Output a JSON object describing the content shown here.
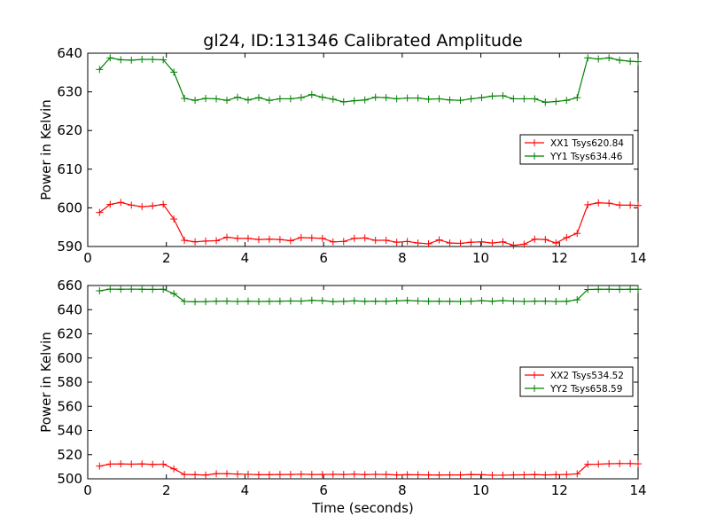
{
  "chart_data": [
    {
      "type": "line",
      "title": "gl24, ID:131346 Calibrated Amplitude",
      "xlabel": "",
      "ylabel": "Power in Kelvin",
      "xlim": [
        0,
        14
      ],
      "ylim": [
        590,
        640
      ],
      "xticks": [
        0,
        2,
        4,
        6,
        8,
        10,
        12,
        14
      ],
      "yticks": [
        590,
        600,
        610,
        620,
        630,
        640
      ],
      "grid": false,
      "legend_position": "right",
      "x": [
        0.3,
        0.57,
        0.84,
        1.11,
        1.38,
        1.65,
        1.92,
        2.19,
        2.46,
        2.73,
        3.0,
        3.27,
        3.54,
        3.81,
        4.08,
        4.35,
        4.62,
        4.89,
        5.16,
        5.43,
        5.7,
        5.97,
        6.24,
        6.51,
        6.78,
        7.05,
        7.32,
        7.59,
        7.86,
        8.13,
        8.4,
        8.67,
        8.94,
        9.21,
        9.48,
        9.75,
        10.02,
        10.29,
        10.56,
        10.83,
        11.1,
        11.37,
        11.64,
        11.91,
        12.18,
        12.45,
        12.72,
        12.99,
        13.26,
        13.53,
        13.8,
        14.0
      ],
      "series": [
        {
          "name": "XX1 Tsys620.84",
          "color": "#ff0000",
          "values": [
            598.8,
            600.9,
            601.4,
            600.7,
            600.3,
            600.5,
            600.9,
            597.1,
            591.6,
            591.2,
            591.4,
            591.5,
            592.4,
            592.1,
            592.1,
            591.8,
            591.9,
            591.8,
            591.5,
            592.3,
            592.2,
            592.1,
            591.2,
            591.3,
            592.1,
            592.2,
            591.6,
            591.6,
            591.1,
            591.3,
            590.9,
            590.7,
            591.7,
            590.9,
            590.8,
            591.1,
            591.2,
            590.9,
            591.2,
            590.3,
            590.6,
            591.9,
            591.8,
            590.9,
            592.3,
            593.4,
            600.8,
            601.3,
            601.2,
            600.7,
            600.7,
            600.6
          ]
        },
        {
          "name": "YY1 Tsys634.46",
          "color": "#008000",
          "values": [
            635.8,
            638.8,
            638.3,
            638.2,
            638.4,
            638.4,
            638.3,
            635.1,
            628.3,
            627.8,
            628.3,
            628.2,
            627.8,
            628.6,
            627.9,
            628.5,
            627.8,
            628.2,
            628.2,
            628.5,
            629.3,
            628.6,
            628.1,
            627.4,
            627.7,
            627.9,
            628.6,
            628.5,
            628.2,
            628.4,
            628.4,
            628.1,
            628.2,
            627.9,
            627.8,
            628.2,
            628.5,
            628.9,
            629.0,
            628.2,
            628.2,
            628.2,
            627.3,
            627.5,
            627.8,
            628.5,
            638.8,
            638.5,
            638.8,
            638.2,
            637.9,
            637.8
          ]
        }
      ]
    },
    {
      "type": "line",
      "title": "",
      "xlabel": "Time (seconds)",
      "ylabel": "Power in Kelvin",
      "xlim": [
        0,
        14
      ],
      "ylim": [
        500,
        660
      ],
      "xticks": [
        0,
        2,
        4,
        6,
        8,
        10,
        12,
        14
      ],
      "yticks": [
        500,
        520,
        540,
        560,
        580,
        600,
        620,
        640,
        660
      ],
      "grid": false,
      "legend_position": "right",
      "x": [
        0.3,
        0.57,
        0.84,
        1.11,
        1.38,
        1.65,
        1.92,
        2.19,
        2.46,
        2.73,
        3.0,
        3.27,
        3.54,
        3.81,
        4.08,
        4.35,
        4.62,
        4.89,
        5.16,
        5.43,
        5.7,
        5.97,
        6.24,
        6.51,
        6.78,
        7.05,
        7.32,
        7.59,
        7.86,
        8.13,
        8.4,
        8.67,
        8.94,
        9.21,
        9.48,
        9.75,
        10.02,
        10.29,
        10.56,
        10.83,
        11.1,
        11.37,
        11.64,
        11.91,
        12.18,
        12.45,
        12.72,
        12.99,
        13.26,
        13.53,
        13.8,
        14.0
      ],
      "series": [
        {
          "name": "XX2 Tsys534.52",
          "color": "#ff0000",
          "values": [
            510.5,
            512.2,
            512.3,
            512.1,
            512.3,
            511.9,
            512.1,
            508.2,
            503.6,
            503.4,
            503.1,
            504.2,
            504.2,
            503.9,
            503.7,
            503.4,
            503.4,
            503.6,
            503.6,
            503.8,
            503.6,
            503.6,
            503.7,
            503.6,
            503.8,
            503.5,
            503.7,
            503.6,
            503.2,
            503.4,
            503.3,
            503.2,
            503.1,
            503.2,
            503.2,
            503.5,
            503.4,
            503.0,
            503.0,
            503.2,
            503.3,
            503.5,
            503.2,
            503.4,
            503.6,
            504.1,
            512.0,
            512.1,
            512.5,
            512.6,
            512.6,
            512.4
          ]
        },
        {
          "name": "YY2 Tsys658.59",
          "color": "#008000",
          "values": [
            655.6,
            657.0,
            656.9,
            657.0,
            656.9,
            656.8,
            656.9,
            653.3,
            646.8,
            646.5,
            646.7,
            647.0,
            647.1,
            646.8,
            647.0,
            646.8,
            646.9,
            647.0,
            647.2,
            647.1,
            647.7,
            647.4,
            646.7,
            646.9,
            647.3,
            646.9,
            647.0,
            646.9,
            647.3,
            647.6,
            647.2,
            647.0,
            647.0,
            646.9,
            646.8,
            647.0,
            647.4,
            647.0,
            647.5,
            647.1,
            646.8,
            647.0,
            647.1,
            646.8,
            646.9,
            648.2,
            656.7,
            656.9,
            656.9,
            656.8,
            656.9,
            656.9
          ]
        }
      ]
    }
  ]
}
